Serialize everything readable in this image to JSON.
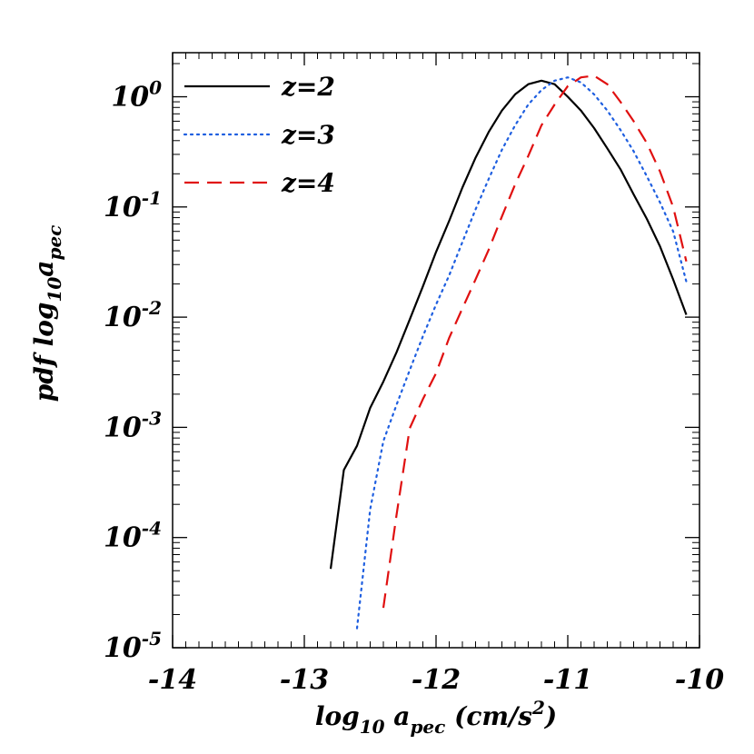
{
  "chart_data": {
    "type": "line",
    "title": "",
    "xlabel": {
      "main": "log",
      "main_sub": "10",
      "var": " a",
      "var_sub": "pec",
      "units_pre": " (cm/s",
      "units_sup": "2",
      "units_post": ")"
    },
    "ylabel": {
      "pre": "pdf  log",
      "pre_sub": "10",
      "var": "a",
      "var_sub": "pec"
    },
    "xlim": [
      -14,
      -10
    ],
    "ylim_log10": [
      -5,
      0.4
    ],
    "y_scale": "log",
    "x_ticks": [
      {
        "value": -14,
        "label": "-14"
      },
      {
        "value": -13,
        "label": "-13"
      },
      {
        "value": -12,
        "label": "-12"
      },
      {
        "value": -11,
        "label": "-11"
      },
      {
        "value": -10,
        "label": "-10"
      }
    ],
    "y_ticks": [
      {
        "exp": 0,
        "base": "10",
        "sup": "0"
      },
      {
        "exp": -1,
        "base": "10",
        "sup": "-1"
      },
      {
        "exp": -2,
        "base": "10",
        "sup": "-2"
      },
      {
        "exp": -3,
        "base": "10",
        "sup": "-3"
      },
      {
        "exp": -4,
        "base": "10",
        "sup": "-4"
      },
      {
        "exp": -5,
        "base": "10",
        "sup": "-5"
      }
    ],
    "legend_position": "top-left",
    "series": [
      {
        "name": "z=2",
        "color": "#000000",
        "dash": "solid",
        "x": [
          -12.8,
          -12.7,
          -12.6,
          -12.5,
          -12.4,
          -12.3,
          -12.2,
          -12.1,
          -12.0,
          -11.9,
          -11.8,
          -11.7,
          -11.6,
          -11.5,
          -11.4,
          -11.3,
          -11.2,
          -11.1,
          -11.0,
          -10.9,
          -10.8,
          -10.7,
          -10.6,
          -10.5,
          -10.4,
          -10.3,
          -10.2,
          -10.1
        ],
        "y": [
          5.2e-05,
          0.00041,
          0.00068,
          0.0015,
          0.0026,
          0.0048,
          0.0095,
          0.019,
          0.039,
          0.075,
          0.15,
          0.28,
          0.48,
          0.75,
          1.05,
          1.3,
          1.4,
          1.3,
          1.0,
          0.75,
          0.52,
          0.34,
          0.22,
          0.13,
          0.078,
          0.044,
          0.022,
          0.0105
        ]
      },
      {
        "name": "z=3",
        "color": "#1f5fe0",
        "dash": "dotted",
        "x": [
          -12.6,
          -12.5,
          -12.4,
          -12.3,
          -12.2,
          -12.1,
          -12.0,
          -11.9,
          -11.8,
          -11.7,
          -11.6,
          -11.5,
          -11.4,
          -11.3,
          -11.2,
          -11.1,
          -11.0,
          -10.9,
          -10.8,
          -10.7,
          -10.6,
          -10.5,
          -10.4,
          -10.3,
          -10.2,
          -10.1
        ],
        "y": [
          1.5e-05,
          0.00018,
          0.00075,
          0.0016,
          0.0033,
          0.0067,
          0.013,
          0.024,
          0.048,
          0.095,
          0.18,
          0.33,
          0.55,
          0.85,
          1.15,
          1.4,
          1.5,
          1.35,
          1.05,
          0.75,
          0.5,
          0.32,
          0.19,
          0.11,
          0.06,
          0.021
        ]
      },
      {
        "name": "z=4",
        "color": "#e01010",
        "dash": "dashed",
        "x": [
          -12.4,
          -12.3,
          -12.2,
          -12.1,
          -12.0,
          -11.9,
          -11.8,
          -11.7,
          -11.6,
          -11.5,
          -11.4,
          -11.3,
          -11.2,
          -11.1,
          -11.0,
          -10.9,
          -10.8,
          -10.7,
          -10.6,
          -10.5,
          -10.4,
          -10.3,
          -10.2,
          -10.1
        ],
        "y": [
          2.3e-05,
          0.00016,
          0.00098,
          0.0018,
          0.0031,
          0.0065,
          0.012,
          0.022,
          0.041,
          0.082,
          0.16,
          0.29,
          0.55,
          0.85,
          1.25,
          1.5,
          1.55,
          1.3,
          0.9,
          0.6,
          0.38,
          0.21,
          0.1,
          0.032
        ]
      }
    ]
  }
}
